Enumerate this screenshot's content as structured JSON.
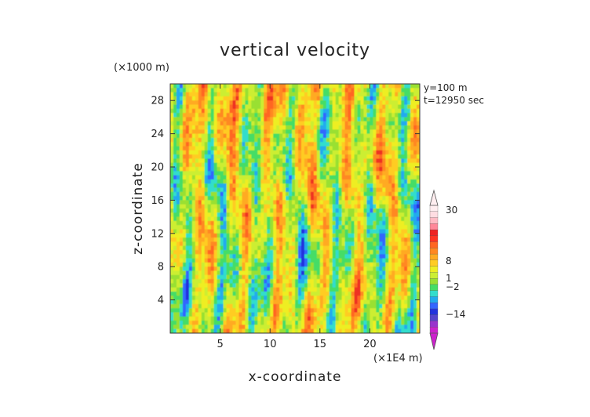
{
  "chart_data": {
    "type": "heatmap",
    "title": "vertical velocity",
    "xlabel": "x-coordinate",
    "ylabel": "z-coordinate",
    "x_unit_label": "(×1E4 m)",
    "y_unit_label": "(×1000 m)",
    "annotations": [
      "y=100 m",
      "t=12950 sec"
    ],
    "xlim": [
      0,
      25
    ],
    "ylim": [
      0,
      30
    ],
    "x_ticks": [
      5,
      10,
      15,
      20
    ],
    "y_ticks": [
      4,
      8,
      12,
      16,
      20,
      24,
      28
    ],
    "colorbar": {
      "labels": [
        "30",
        "8",
        "1",
        "−2",
        "−14"
      ],
      "colors": [
        "#cc22cc",
        "#9933cc",
        "#5544cc",
        "#2233dd",
        "#3366ff",
        "#22aaee",
        "#33ddcc",
        "#44dd66",
        "#99e033",
        "#ccee33",
        "#eeee22",
        "#ffcc22",
        "#ffaa22",
        "#ff8822",
        "#ff6622",
        "#ff3322",
        "#ee2222",
        "#ff8899",
        "#ffbbc4",
        "#ffdde2",
        "#ffeef0"
      ]
    }
  }
}
